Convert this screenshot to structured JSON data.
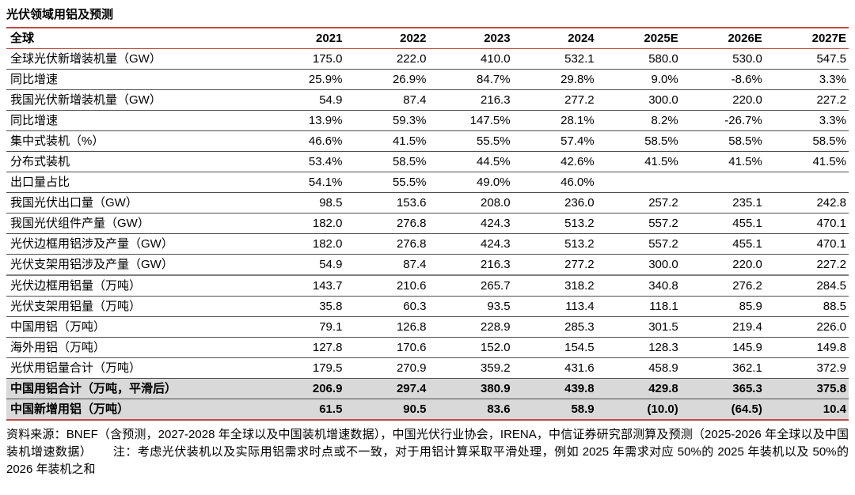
{
  "page": {
    "title": "光伏领域用铝及预测"
  },
  "table": {
    "header": {
      "label": "全球",
      "years": [
        "2021",
        "2022",
        "2023",
        "2024",
        "2025E",
        "2026E",
        "2027E"
      ]
    },
    "rows": [
      {
        "label": "全球光伏新增装机量（GW）",
        "values": [
          "175.0",
          "222.0",
          "410.0",
          "532.1",
          "580.0",
          "530.0",
          "547.5"
        ]
      },
      {
        "label": "同比增速",
        "values": [
          "25.9%",
          "26.9%",
          "84.7%",
          "29.8%",
          "9.0%",
          "-8.6%",
          "3.3%"
        ]
      },
      {
        "label": "我国光伏新增装机量（GW）",
        "values": [
          "54.9",
          "87.4",
          "216.3",
          "277.2",
          "300.0",
          "220.0",
          "227.2"
        ]
      },
      {
        "label": "同比增速",
        "values": [
          "13.9%",
          "59.3%",
          "147.5%",
          "28.1%",
          "8.2%",
          "-26.7%",
          "3.3%"
        ]
      },
      {
        "label": "集中式装机（%）",
        "values": [
          "46.6%",
          "41.5%",
          "55.5%",
          "57.4%",
          "58.5%",
          "58.5%",
          "58.5%"
        ]
      },
      {
        "label": "分布式装机",
        "values": [
          "53.4%",
          "58.5%",
          "44.5%",
          "42.6%",
          "41.5%",
          "41.5%",
          "41.5%"
        ]
      },
      {
        "label": "出口量占比",
        "values": [
          "54.1%",
          "55.5%",
          "49.0%",
          "46.0%",
          "",
          "",
          ""
        ]
      },
      {
        "label": "我国光伏出口量（GW）",
        "values": [
          "98.5",
          "153.6",
          "208.0",
          "236.0",
          "257.2",
          "235.1",
          "242.8"
        ]
      },
      {
        "label": "我国光伏组件产量（GW）",
        "values": [
          "182.0",
          "276.8",
          "424.3",
          "513.2",
          "557.2",
          "455.1",
          "470.1"
        ]
      },
      {
        "label": "光伏边框用铝涉及产量（GW）",
        "values": [
          "182.0",
          "276.8",
          "424.3",
          "513.2",
          "557.2",
          "455.1",
          "470.1"
        ]
      },
      {
        "label": "光伏支架用铝涉及产量（GW）",
        "values": [
          "54.9",
          "87.4",
          "216.3",
          "277.2",
          "300.0",
          "220.0",
          "227.2"
        ]
      },
      {
        "label": "光伏边框用铝量（万吨）",
        "values": [
          "143.7",
          "210.6",
          "265.7",
          "318.2",
          "340.8",
          "276.2",
          "284.5"
        ],
        "thick_top": true
      },
      {
        "label": "光伏支架用铝量（万吨）",
        "values": [
          "35.8",
          "60.3",
          "93.5",
          "113.4",
          "118.1",
          "85.9",
          "88.5"
        ]
      },
      {
        "label": "中国用铝（万吨）",
        "values": [
          "79.1",
          "126.8",
          "228.9",
          "285.3",
          "301.5",
          "219.4",
          "226.0"
        ]
      },
      {
        "label": "海外用铝（万吨）",
        "values": [
          "127.8",
          "170.6",
          "152.0",
          "154.5",
          "128.3",
          "145.9",
          "149.8"
        ]
      },
      {
        "label": "光伏用铝量合计（万吨）",
        "values": [
          "179.5",
          "270.9",
          "359.2",
          "431.6",
          "458.9",
          "362.1",
          "372.9"
        ]
      },
      {
        "label": "中国用铝合计（万吨，平滑后）",
        "values": [
          "206.9",
          "297.4",
          "380.9",
          "439.8",
          "429.8",
          "365.3",
          "375.8"
        ],
        "highlight": true
      },
      {
        "label": "中国新增用铝（万吨）",
        "values": [
          "61.5",
          "90.5",
          "83.6",
          "58.9",
          "(10.0)",
          "(64.5)",
          "10.4"
        ],
        "highlight": true
      }
    ]
  },
  "footer": {
    "source": "资料来源：BNEF（含预测，2027-2028 年全球以及中国装机增速数据），中国光伏行业协会，IRENA，中信证券研究部测算及预测（2025-2026 年全球以及中国装机增速数据）",
    "note": "注：考虑光伏装机以及实际用铝需求时点或不一致，对于用铝计算采取平滑处理，例如 2025 年需求对应 50%的 2025 年装机以及 50%的 2026 年装机之和"
  },
  "colors": {
    "accent_red": "#BE4B48",
    "highlight_gray": "#D9D9D9",
    "row_border": "#4D4D4D",
    "thick_border": "#808080"
  }
}
